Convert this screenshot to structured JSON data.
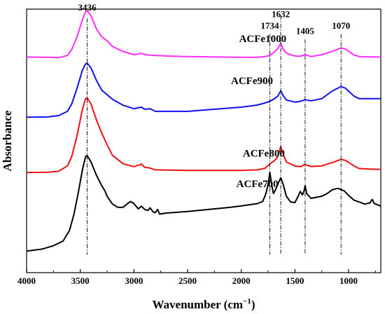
{
  "chart_data": {
    "type": "line",
    "title": "",
    "xlabel": "Wavenumber (cm",
    "xlabel_sup": "−1",
    "xlabel_close": ")",
    "ylabel": "Absorbance",
    "xlim": [
      4000,
      700
    ],
    "x_reversed": true,
    "y_ticks_shown": false,
    "x_ticks": [
      {
        "value": 4000,
        "label": "4000"
      },
      {
        "value": 3500,
        "label": "3500"
      },
      {
        "value": 3000,
        "label": "3000"
      },
      {
        "value": 2500,
        "label": "2500"
      },
      {
        "value": 2000,
        "label": "2000"
      },
      {
        "value": 1500,
        "label": "1500"
      },
      {
        "value": 1000,
        "label": "1000"
      }
    ],
    "peak_markers": [
      {
        "wavenumber": 3436,
        "label": "3436"
      },
      {
        "wavenumber": 1734,
        "label": "1734"
      },
      {
        "wavenumber": 1632,
        "label": "1632"
      },
      {
        "wavenumber": 1405,
        "label": "1405"
      },
      {
        "wavenumber": 1070,
        "label": "1070"
      }
    ],
    "series": [
      {
        "name": "ACFe1000",
        "color": "#ff2bff",
        "points": [
          [
            4000,
            0.818
          ],
          [
            3800,
            0.817
          ],
          [
            3700,
            0.816
          ],
          [
            3620,
            0.824
          ],
          [
            3580,
            0.846
          ],
          [
            3530,
            0.895
          ],
          [
            3480,
            0.96
          ],
          [
            3450,
            0.99
          ],
          [
            3436,
            0.993
          ],
          [
            3400,
            0.975
          ],
          [
            3350,
            0.925
          ],
          [
            3300,
            0.895
          ],
          [
            3250,
            0.88
          ],
          [
            3200,
            0.858
          ],
          [
            3100,
            0.839
          ],
          [
            3000,
            0.827
          ],
          [
            2930,
            0.832
          ],
          [
            2900,
            0.828
          ],
          [
            2850,
            0.825
          ],
          [
            2700,
            0.822
          ],
          [
            2500,
            0.82
          ],
          [
            2000,
            0.817
          ],
          [
            1850,
            0.817
          ],
          [
            1780,
            0.82
          ],
          [
            1734,
            0.824
          ],
          [
            1690,
            0.838
          ],
          [
            1660,
            0.85
          ],
          [
            1632,
            0.87
          ],
          [
            1610,
            0.848
          ],
          [
            1580,
            0.833
          ],
          [
            1500,
            0.822
          ],
          [
            1450,
            0.821
          ],
          [
            1405,
            0.827
          ],
          [
            1350,
            0.82
          ],
          [
            1250,
            0.827
          ],
          [
            1150,
            0.84
          ],
          [
            1070,
            0.853
          ],
          [
            1030,
            0.849
          ],
          [
            950,
            0.826
          ],
          [
            900,
            0.82
          ],
          [
            800,
            0.819
          ],
          [
            700,
            0.818
          ]
        ]
      },
      {
        "name": "ACFe900",
        "color": "#1010f0",
        "points": [
          [
            4000,
            0.59
          ],
          [
            3800,
            0.591
          ],
          [
            3700,
            0.596
          ],
          [
            3620,
            0.612
          ],
          [
            3580,
            0.64
          ],
          [
            3530,
            0.7
          ],
          [
            3480,
            0.768
          ],
          [
            3450,
            0.792
          ],
          [
            3436,
            0.795
          ],
          [
            3400,
            0.777
          ],
          [
            3350,
            0.73
          ],
          [
            3300,
            0.693
          ],
          [
            3250,
            0.675
          ],
          [
            3200,
            0.658
          ],
          [
            3100,
            0.635
          ],
          [
            3000,
            0.622
          ],
          [
            2930,
            0.628
          ],
          [
            2900,
            0.62
          ],
          [
            2850,
            0.622
          ],
          [
            2800,
            0.612
          ],
          [
            2500,
            0.612
          ],
          [
            2000,
            0.628
          ],
          [
            1850,
            0.636
          ],
          [
            1780,
            0.644
          ],
          [
            1734,
            0.65
          ],
          [
            1690,
            0.66
          ],
          [
            1660,
            0.67
          ],
          [
            1632,
            0.69
          ],
          [
            1610,
            0.672
          ],
          [
            1580,
            0.655
          ],
          [
            1500,
            0.647
          ],
          [
            1450,
            0.65
          ],
          [
            1405,
            0.656
          ],
          [
            1350,
            0.652
          ],
          [
            1250,
            0.66
          ],
          [
            1150,
            0.69
          ],
          [
            1070,
            0.706
          ],
          [
            1030,
            0.7
          ],
          [
            950,
            0.67
          ],
          [
            900,
            0.66
          ],
          [
            800,
            0.66
          ],
          [
            700,
            0.66
          ]
        ]
      },
      {
        "name": "ACFe800",
        "color": "#ee1111",
        "points": [
          [
            4000,
            0.38
          ],
          [
            3800,
            0.381
          ],
          [
            3700,
            0.385
          ],
          [
            3620,
            0.405
          ],
          [
            3580,
            0.44
          ],
          [
            3530,
            0.52
          ],
          [
            3480,
            0.62
          ],
          [
            3450,
            0.66
          ],
          [
            3436,
            0.663
          ],
          [
            3400,
            0.64
          ],
          [
            3350,
            0.58
          ],
          [
            3300,
            0.53
          ],
          [
            3250,
            0.485
          ],
          [
            3200,
            0.445
          ],
          [
            3100,
            0.413
          ],
          [
            3000,
            0.402
          ],
          [
            2930,
            0.412
          ],
          [
            2900,
            0.4
          ],
          [
            2850,
            0.397
          ],
          [
            2800,
            0.39
          ],
          [
            2500,
            0.388
          ],
          [
            2000,
            0.388
          ],
          [
            1850,
            0.39
          ],
          [
            1780,
            0.396
          ],
          [
            1734,
            0.413
          ],
          [
            1690,
            0.425
          ],
          [
            1660,
            0.44
          ],
          [
            1632,
            0.478
          ],
          [
            1610,
            0.45
          ],
          [
            1580,
            0.42
          ],
          [
            1500,
            0.405
          ],
          [
            1450,
            0.402
          ],
          [
            1405,
            0.41
          ],
          [
            1350,
            0.403
          ],
          [
            1250,
            0.405
          ],
          [
            1150,
            0.418
          ],
          [
            1070,
            0.43
          ],
          [
            1030,
            0.426
          ],
          [
            950,
            0.405
          ],
          [
            900,
            0.395
          ],
          [
            800,
            0.393
          ],
          [
            700,
            0.392
          ]
        ]
      },
      {
        "name": "ACFe700",
        "color": "#000000",
        "points": [
          [
            4000,
            0.082
          ],
          [
            3850,
            0.09
          ],
          [
            3750,
            0.102
          ],
          [
            3660,
            0.12
          ],
          [
            3600,
            0.16
          ],
          [
            3560,
            0.22
          ],
          [
            3520,
            0.3
          ],
          [
            3480,
            0.39
          ],
          [
            3450,
            0.44
          ],
          [
            3436,
            0.445
          ],
          [
            3400,
            0.42
          ],
          [
            3350,
            0.37
          ],
          [
            3300,
            0.33
          ],
          [
            3270,
            0.31
          ],
          [
            3250,
            0.29
          ],
          [
            3200,
            0.26
          ],
          [
            3150,
            0.248
          ],
          [
            3100,
            0.248
          ],
          [
            3060,
            0.262
          ],
          [
            3030,
            0.27
          ],
          [
            3000,
            0.262
          ],
          [
            2960,
            0.242
          ],
          [
            2930,
            0.252
          ],
          [
            2900,
            0.24
          ],
          [
            2870,
            0.236
          ],
          [
            2850,
            0.246
          ],
          [
            2820,
            0.23
          ],
          [
            2800,
            0.228
          ],
          [
            2780,
            0.24
          ],
          [
            2760,
            0.222
          ],
          [
            2700,
            0.226
          ],
          [
            2500,
            0.232
          ],
          [
            2300,
            0.24
          ],
          [
            2100,
            0.248
          ],
          [
            1950,
            0.256
          ],
          [
            1850,
            0.262
          ],
          [
            1800,
            0.27
          ],
          [
            1770,
            0.3
          ],
          [
            1750,
            0.335
          ],
          [
            1734,
            0.38
          ],
          [
            1715,
            0.33
          ],
          [
            1700,
            0.3
          ],
          [
            1680,
            0.315
          ],
          [
            1650,
            0.345
          ],
          [
            1632,
            0.36
          ],
          [
            1610,
            0.335
          ],
          [
            1580,
            0.29
          ],
          [
            1540,
            0.268
          ],
          [
            1500,
            0.266
          ],
          [
            1470,
            0.29
          ],
          [
            1450,
            0.308
          ],
          [
            1430,
            0.295
          ],
          [
            1415,
            0.31
          ],
          [
            1405,
            0.33
          ],
          [
            1390,
            0.3
          ],
          [
            1350,
            0.282
          ],
          [
            1250,
            0.29
          ],
          [
            1200,
            0.3
          ],
          [
            1150,
            0.315
          ],
          [
            1100,
            0.32
          ],
          [
            1070,
            0.315
          ],
          [
            1040,
            0.31
          ],
          [
            1000,
            0.293
          ],
          [
            950,
            0.275
          ],
          [
            900,
            0.268
          ],
          [
            850,
            0.26
          ],
          [
            800,
            0.265
          ],
          [
            780,
            0.278
          ],
          [
            760,
            0.262
          ],
          [
            720,
            0.256
          ],
          [
            700,
            0.252
          ]
        ]
      }
    ],
    "series_labels": [
      {
        "text": "ACFe1000",
        "x": 1800,
        "y": 0.875
      },
      {
        "text": "ACFe900",
        "x": 1900,
        "y": 0.715
      },
      {
        "text": "ACFe800",
        "x": 1790,
        "y": 0.44
      },
      {
        "text": "ACFe700",
        "x": 1850,
        "y": 0.325
      }
    ]
  }
}
